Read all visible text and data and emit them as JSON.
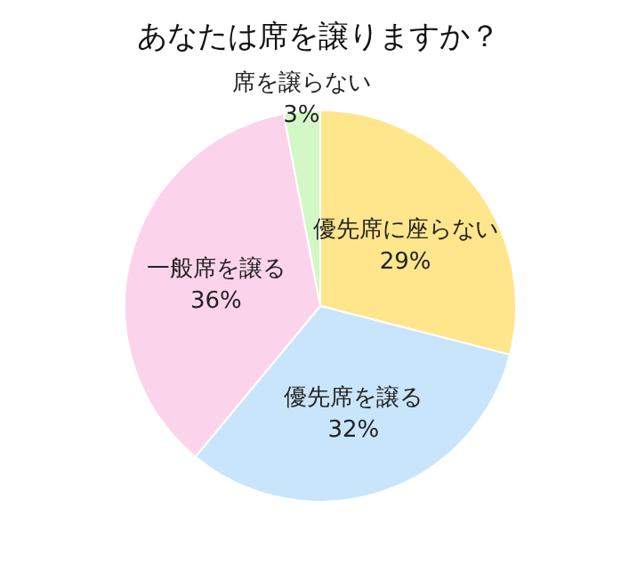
{
  "chart_data": {
    "type": "pie",
    "title": "あなたは席を譲りますか？",
    "categories": [
      "優先席に座らない",
      "優先席を譲る",
      "一般席を譲る",
      "席を譲らない"
    ],
    "values": [
      29,
      32,
      36,
      3
    ],
    "colors": [
      "#ffe68c",
      "#c9e5fb",
      "#fbd4ec",
      "#d4f7c6"
    ],
    "value_labels": [
      "29%",
      "32%",
      "36%",
      "3%"
    ]
  }
}
